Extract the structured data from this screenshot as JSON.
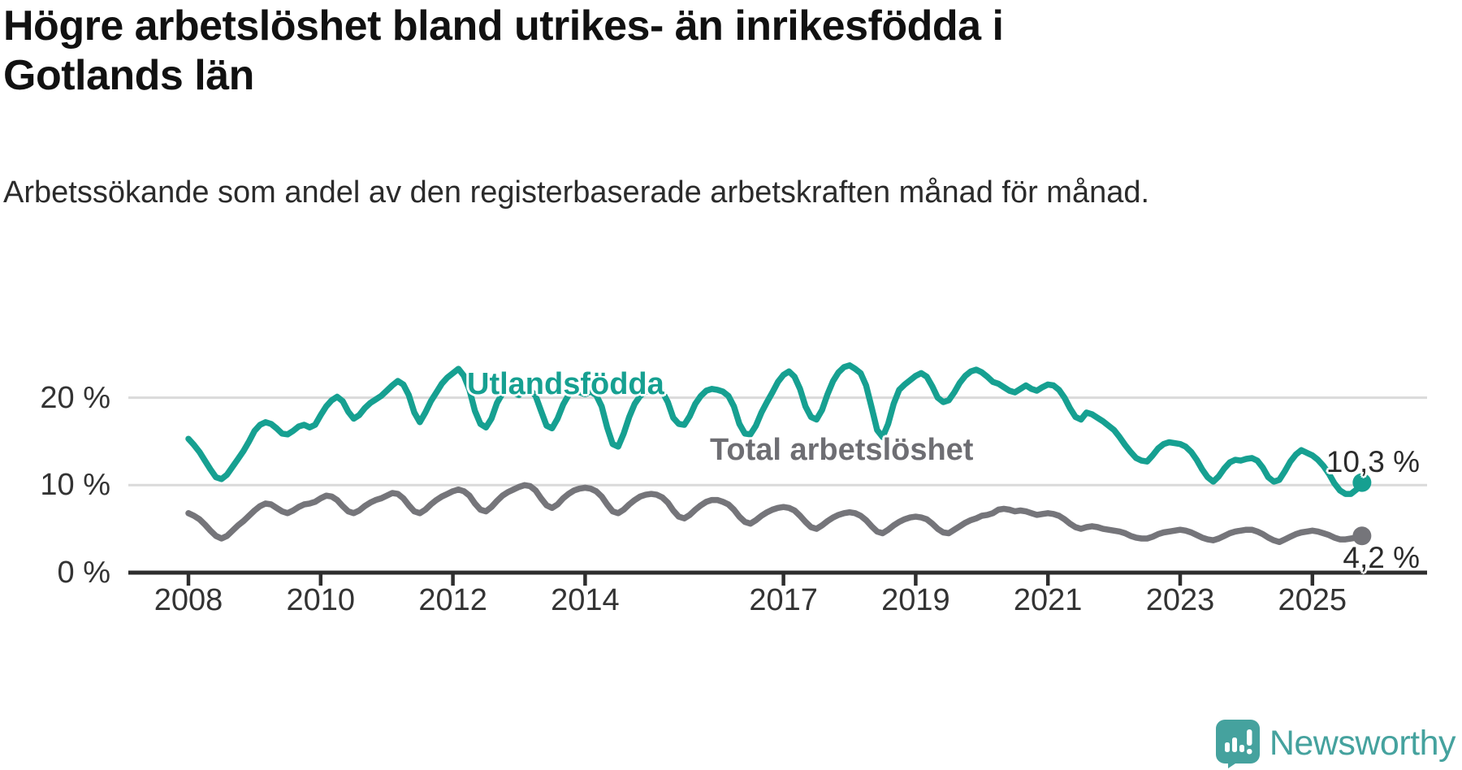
{
  "title": "Högre arbetslöshet bland utrikes- än inrikesfödda i Gotlands län",
  "subtitle": "Arbetssökande som andel av den registerbaserade arbetskraften månad för månad.",
  "chart_data": {
    "type": "line",
    "x_unit": "month",
    "x_start": "2008-01",
    "x_end": "2025-10",
    "x_tick_years": [
      2008,
      2010,
      2012,
      2014,
      2017,
      2019,
      2021,
      2023,
      2025
    ],
    "y_ticks": [
      {
        "value": 0,
        "label": "0 %"
      },
      {
        "value": 10,
        "label": "10 %"
      },
      {
        "value": 20,
        "label": "20 %"
      }
    ],
    "ylim": [
      0,
      25
    ],
    "grid": "horizontal",
    "colors": {
      "axis": "#2e2e2e",
      "grid": "#dadada",
      "tick_text": "#333333"
    },
    "series": [
      {
        "name": "Utlandsfödda",
        "color": "#16a091",
        "end_label": "10,3 %",
        "end_value": 10.3,
        "values": [
          15.3,
          14.6,
          13.8,
          12.8,
          11.8,
          10.9,
          10.7,
          11.2,
          12.1,
          13.0,
          13.9,
          15.0,
          16.2,
          16.9,
          17.2,
          17.0,
          16.5,
          15.9,
          15.8,
          16.2,
          16.7,
          16.9,
          16.6,
          16.9,
          18.0,
          19.0,
          19.7,
          20.1,
          19.6,
          18.4,
          17.6,
          18.0,
          18.8,
          19.4,
          19.8,
          20.2,
          20.8,
          21.4,
          21.9,
          21.5,
          20.3,
          18.3,
          17.2,
          18.3,
          19.6,
          20.6,
          21.6,
          22.3,
          22.8,
          23.3,
          22.5,
          20.9,
          18.5,
          17.0,
          16.6,
          17.6,
          19.4,
          20.5,
          20.9,
          20.5,
          20.3,
          20.8,
          20.9,
          20.2,
          18.5,
          16.8,
          16.5,
          17.6,
          19.2,
          20.3,
          20.8,
          20.6,
          20.4,
          20.7,
          20.3,
          19.0,
          16.6,
          14.7,
          14.4,
          15.9,
          17.8,
          19.3,
          20.2,
          20.7,
          21.0,
          21.2,
          20.7,
          19.5,
          17.7,
          17.0,
          16.9,
          17.9,
          19.3,
          20.2,
          20.8,
          21.0,
          20.9,
          20.7,
          20.2,
          19.0,
          17.0,
          15.9,
          15.8,
          16.8,
          18.3,
          19.5,
          20.6,
          21.8,
          22.6,
          23.0,
          22.4,
          21.0,
          19.0,
          17.8,
          17.5,
          18.6,
          20.4,
          21.9,
          22.9,
          23.5,
          23.7,
          23.3,
          22.8,
          21.4,
          18.9,
          16.3,
          15.5,
          17.0,
          19.3,
          20.9,
          21.5,
          22.0,
          22.5,
          22.8,
          22.4,
          21.3,
          20.0,
          19.5,
          19.7,
          20.6,
          21.7,
          22.5,
          23.0,
          23.2,
          22.9,
          22.4,
          21.8,
          21.6,
          21.2,
          20.8,
          20.6,
          21.0,
          21.4,
          21.0,
          20.8,
          21.2,
          21.5,
          21.4,
          20.9,
          20.0,
          18.8,
          17.8,
          17.5,
          18.3,
          18.1,
          17.7,
          17.3,
          16.8,
          16.3,
          15.5,
          14.6,
          13.8,
          13.1,
          12.8,
          12.7,
          13.4,
          14.2,
          14.7,
          14.9,
          14.8,
          14.7,
          14.4,
          13.8,
          12.9,
          11.8,
          10.9,
          10.4,
          11.0,
          11.9,
          12.6,
          12.9,
          12.8,
          13.0,
          13.1,
          12.8,
          12.0,
          10.9,
          10.4,
          10.6,
          11.6,
          12.7,
          13.5,
          14.0,
          13.7,
          13.4,
          12.9,
          12.2,
          11.3,
          10.2,
          9.4,
          9.0,
          9.0,
          9.5,
          10.3
        ]
      },
      {
        "name": "Total arbetslöshet",
        "color": "#75757a",
        "end_label": "4,2 %",
        "end_value": 4.2,
        "values": [
          6.8,
          6.5,
          6.1,
          5.5,
          4.8,
          4.2,
          3.9,
          4.2,
          4.8,
          5.4,
          5.9,
          6.5,
          7.1,
          7.6,
          7.9,
          7.8,
          7.4,
          7.0,
          6.8,
          7.1,
          7.5,
          7.8,
          7.9,
          8.1,
          8.5,
          8.8,
          8.7,
          8.3,
          7.6,
          7.0,
          6.8,
          7.1,
          7.6,
          8.0,
          8.3,
          8.5,
          8.8,
          9.1,
          9.0,
          8.5,
          7.7,
          7.0,
          6.8,
          7.2,
          7.8,
          8.3,
          8.7,
          9.0,
          9.3,
          9.5,
          9.3,
          8.8,
          7.9,
          7.2,
          7.0,
          7.5,
          8.2,
          8.8,
          9.2,
          9.5,
          9.8,
          10.0,
          9.9,
          9.4,
          8.5,
          7.7,
          7.4,
          7.8,
          8.5,
          9.0,
          9.4,
          9.6,
          9.7,
          9.6,
          9.3,
          8.7,
          7.8,
          7.0,
          6.8,
          7.2,
          7.8,
          8.3,
          8.7,
          8.9,
          9.0,
          8.9,
          8.6,
          8.0,
          7.1,
          6.4,
          6.2,
          6.6,
          7.2,
          7.7,
          8.1,
          8.3,
          8.3,
          8.1,
          7.8,
          7.2,
          6.4,
          5.8,
          5.6,
          6.0,
          6.5,
          6.9,
          7.2,
          7.4,
          7.5,
          7.4,
          7.1,
          6.5,
          5.8,
          5.2,
          5.0,
          5.4,
          5.9,
          6.3,
          6.6,
          6.8,
          6.9,
          6.8,
          6.5,
          6.0,
          5.3,
          4.7,
          4.5,
          4.9,
          5.4,
          5.8,
          6.1,
          6.3,
          6.4,
          6.3,
          6.1,
          5.6,
          5.0,
          4.6,
          4.5,
          4.9,
          5.3,
          5.7,
          6.0,
          6.2,
          6.5,
          6.6,
          6.8,
          7.2,
          7.3,
          7.2,
          7.0,
          7.1,
          7.0,
          6.8,
          6.6,
          6.7,
          6.8,
          6.7,
          6.5,
          6.1,
          5.6,
          5.2,
          5.0,
          5.2,
          5.3,
          5.2,
          5.0,
          4.9,
          4.8,
          4.7,
          4.5,
          4.2,
          4.0,
          3.9,
          3.9,
          4.1,
          4.4,
          4.6,
          4.7,
          4.8,
          4.9,
          4.8,
          4.6,
          4.3,
          4.0,
          3.8,
          3.7,
          3.9,
          4.2,
          4.5,
          4.7,
          4.8,
          4.9,
          4.9,
          4.7,
          4.4,
          4.0,
          3.7,
          3.5,
          3.8,
          4.1,
          4.4,
          4.6,
          4.7,
          4.8,
          4.7,
          4.5,
          4.3,
          4.0,
          3.8,
          3.8,
          3.9,
          4.0,
          4.2
        ]
      }
    ]
  },
  "branding": {
    "logo_text": "Newsworthy",
    "logo_color": "#45a29e",
    "logo_icon": "speech-bubble-bar-chart-exclamation"
  }
}
